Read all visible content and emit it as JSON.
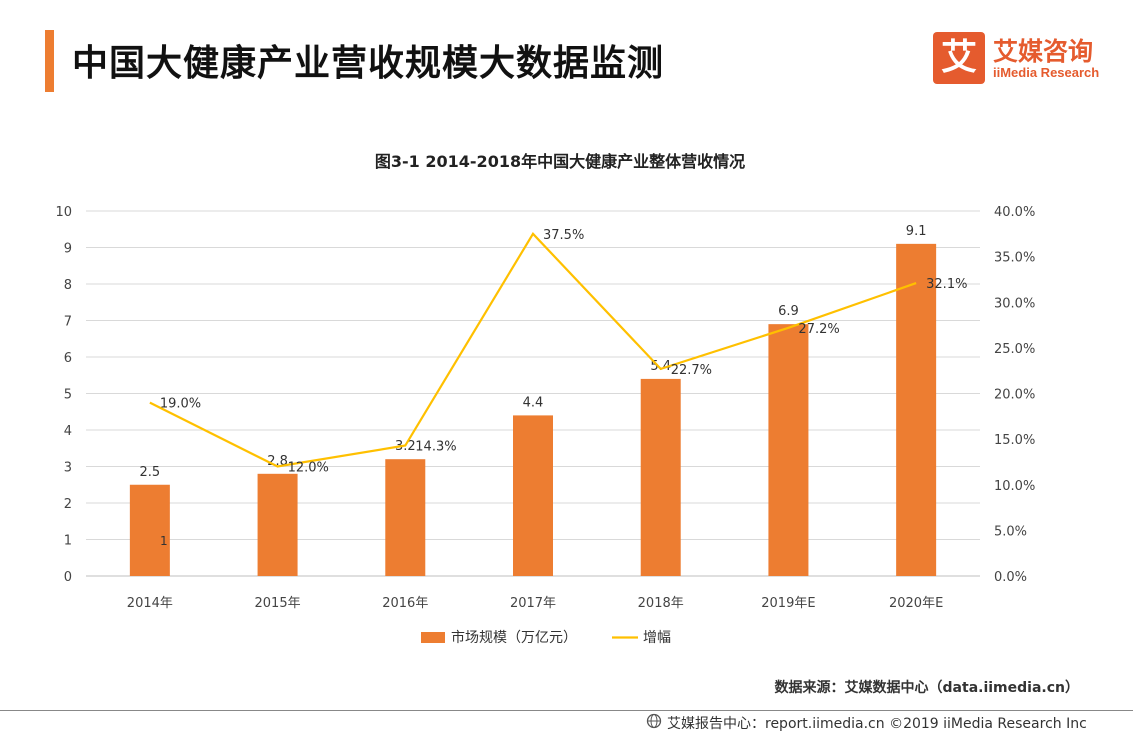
{
  "page": {
    "title": "中国大健康产业营收规模大数据监测",
    "logo_mark": "艾",
    "logo_cn": "艾媒咨询",
    "logo_en": "iiMedia Research",
    "source": "数据来源：艾媒数据中心（data.iimedia.cn）",
    "footer": "艾媒报告中心：report.iimedia.cn ©2019 iiMedia Research Inc"
  },
  "chart_data": {
    "type": "bar",
    "title": "图3-1 2014-2018年中国大健康产业整体营收情况",
    "categories": [
      "2014年",
      "2015年",
      "2016年",
      "2017年",
      "2018年",
      "2019年E",
      "2020年E"
    ],
    "series": [
      {
        "name": "市场规模（万亿元）",
        "type": "bar",
        "axis": "left",
        "values": [
          2.5,
          2.8,
          3.2,
          4.4,
          5.4,
          6.9,
          9.1
        ],
        "labels": [
          "2.5",
          "2.8",
          "3.2",
          "4.4",
          "5.4",
          "6.9",
          "9.1"
        ]
      },
      {
        "name": "增幅",
        "type": "line",
        "axis": "right",
        "values": [
          19.0,
          12.0,
          14.3,
          37.5,
          22.7,
          27.2,
          32.1
        ],
        "labels": [
          "19.0%",
          "12.0%",
          "14.3%",
          "37.5%",
          "22.7%",
          "27.2%",
          "32.1%"
        ]
      }
    ],
    "y_left": {
      "range": [
        0,
        10
      ],
      "ticks": [
        "0",
        "1",
        "2",
        "3",
        "4",
        "5",
        "6",
        "7",
        "8",
        "9",
        "10"
      ]
    },
    "y_right": {
      "range": [
        0,
        40
      ],
      "ticks": [
        "0.0%",
        "5.0%",
        "10.0%",
        "15.0%",
        "20.0%",
        "25.0%",
        "30.0%",
        "35.0%",
        "40.0%"
      ]
    },
    "stray_label": "1",
    "grid": true,
    "legend_position": "bottom",
    "colors": {
      "bar": "#ED7D31",
      "line": "#FFC000",
      "grid": "#D9D9D9"
    }
  }
}
